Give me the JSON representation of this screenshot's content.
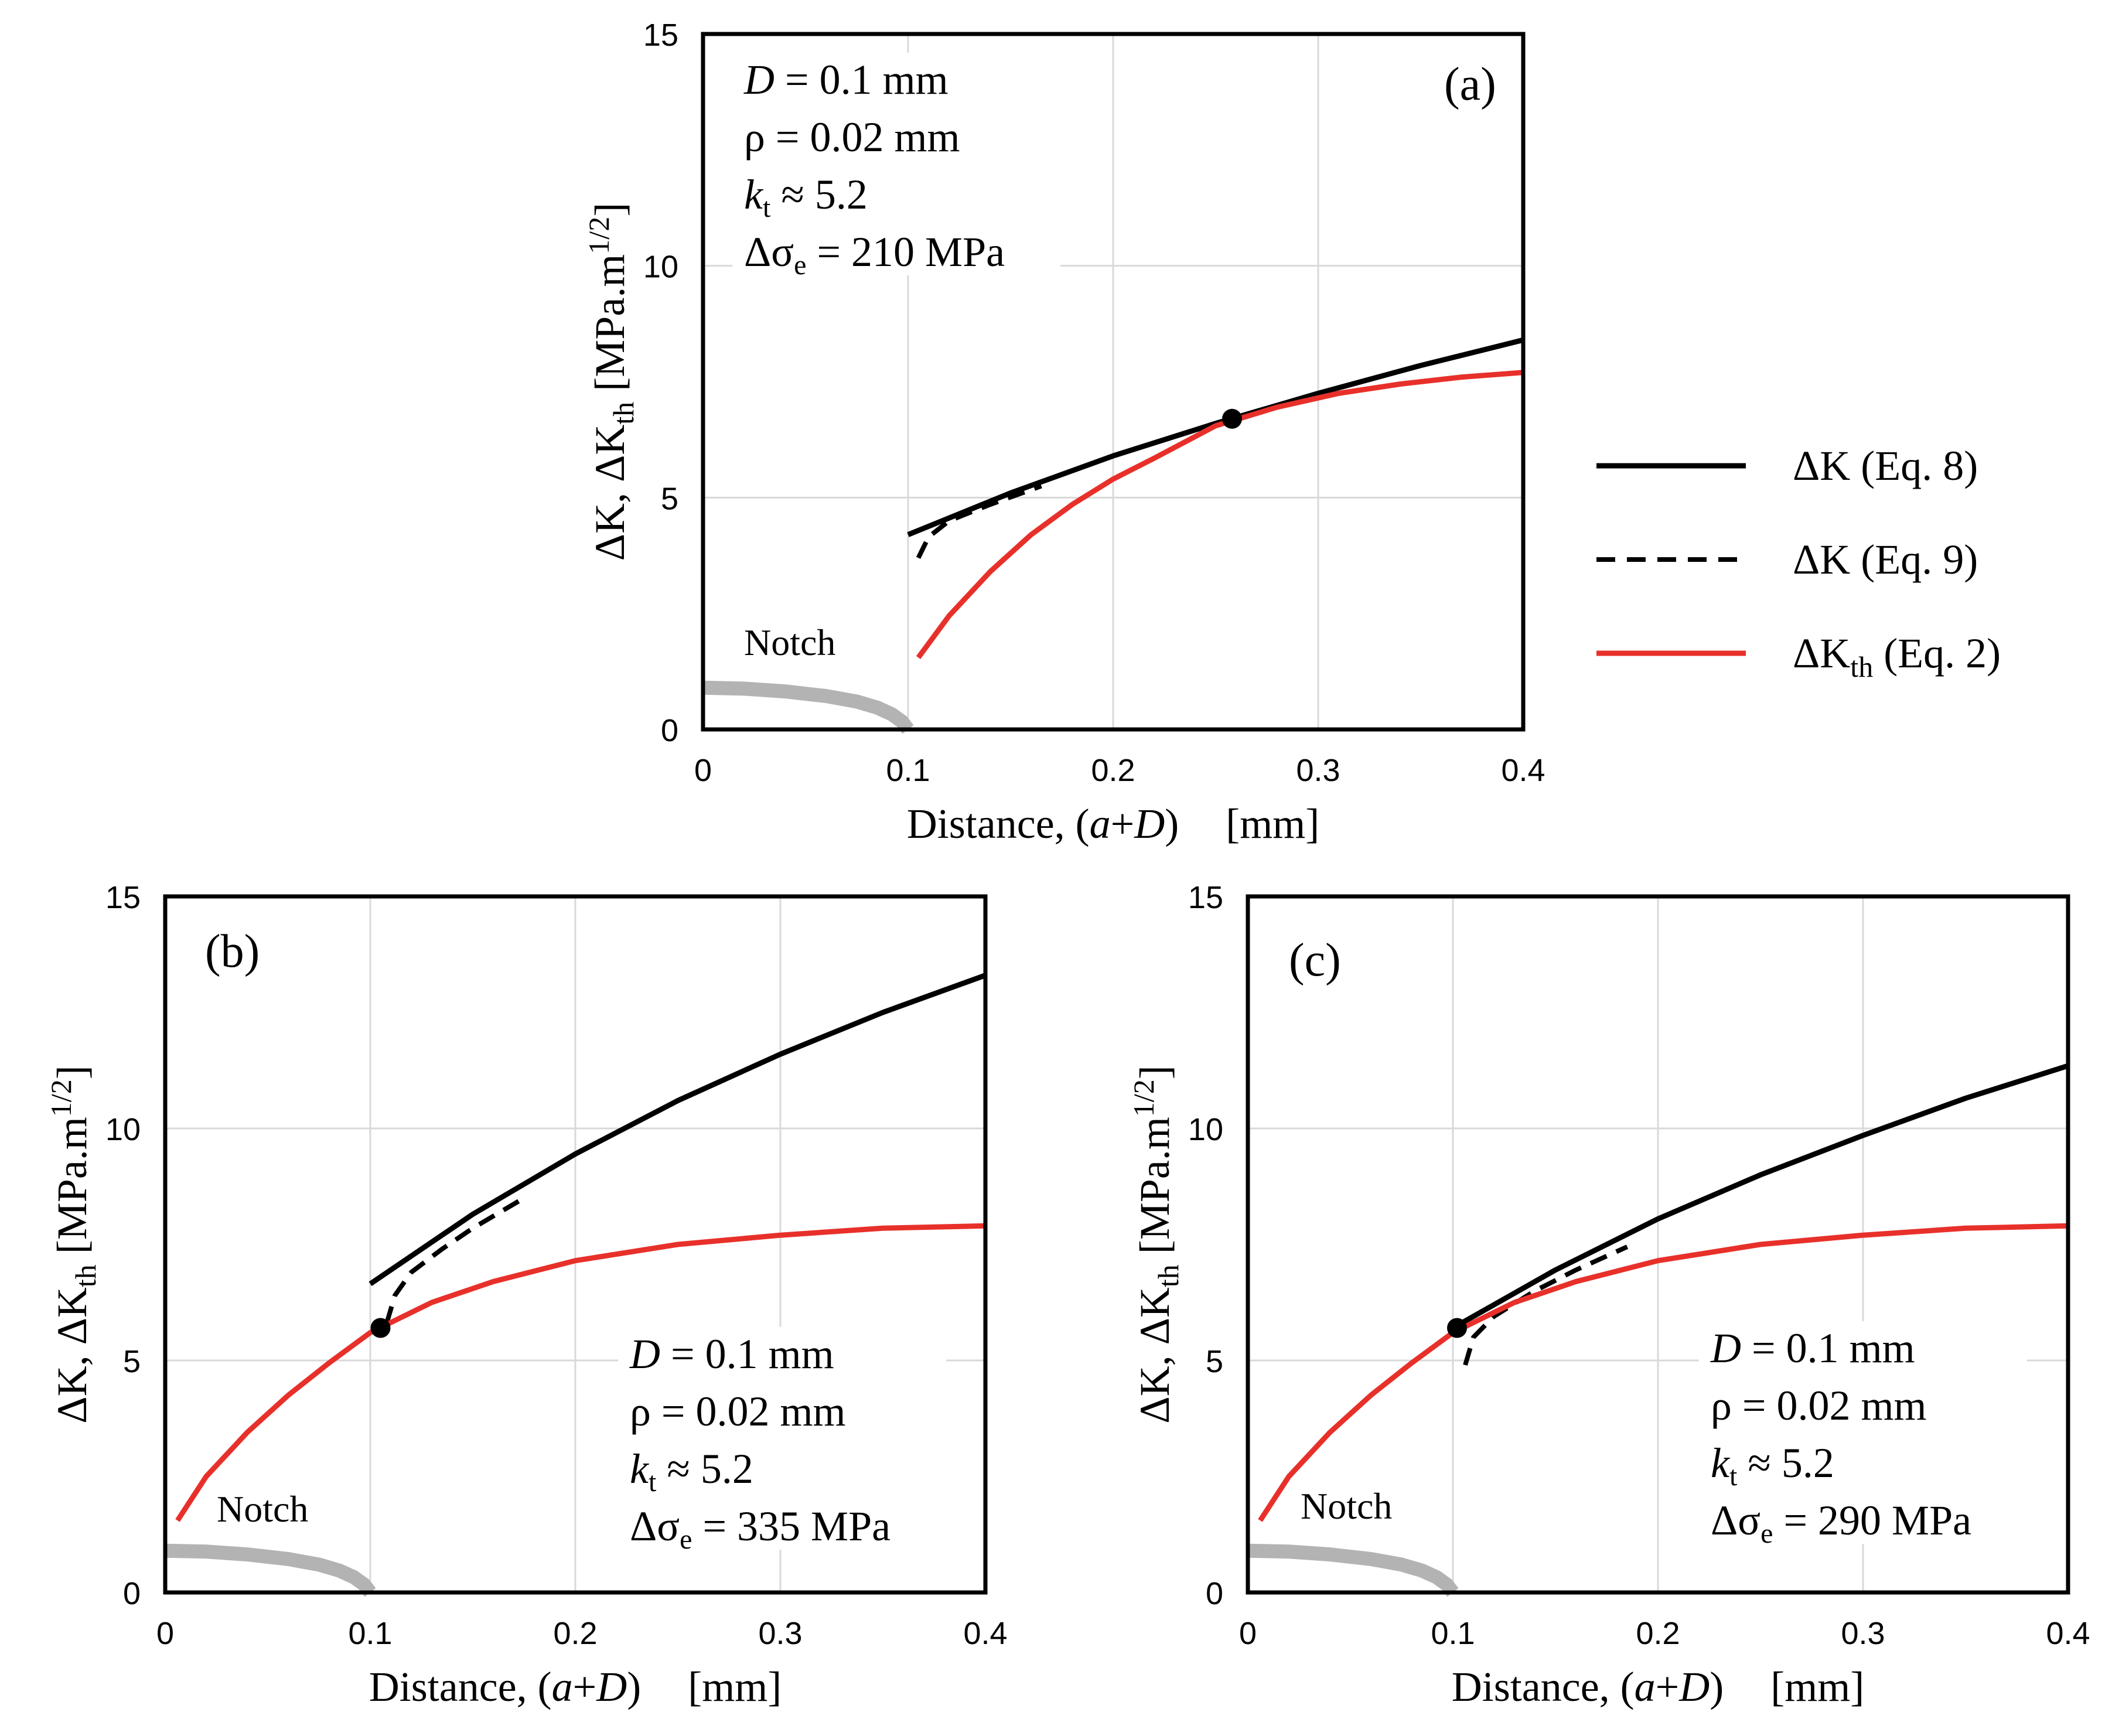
{
  "chart_data": [
    {
      "type": "line",
      "panel_label": "(a)",
      "xlabel": {
        "prefix": "Distance, (",
        "var1": "a",
        "plus": "+",
        "var2": "D",
        "suffix": ")",
        "unit": "[mm]"
      },
      "ylabel": {
        "main": "ΔK,  ΔK",
        "sub": "th",
        "unit": "  [MPa.m",
        "exp": "1/2",
        "close": "]"
      },
      "xlim": [
        0,
        0.4
      ],
      "ylim": [
        0,
        15
      ],
      "xticks": [
        "0",
        "0.1",
        "0.2",
        "0.3",
        "0.4"
      ],
      "yticks": [
        "0",
        "5",
        "10",
        "15"
      ],
      "grid": true,
      "annotation": {
        "D": {
          "var": "D",
          "text": " = 0.1 mm"
        },
        "rho": "ρ = 0.02 mm",
        "kt": {
          "var": "k",
          "sub": "t",
          "text": " ≈ 5.2"
        },
        "ds": {
          "prefix": "Δσ",
          "sub": "e",
          "text": " = 210 MPa"
        }
      },
      "notch_label": "Notch",
      "notch": {
        "x": [
          0,
          0.02,
          0.04,
          0.06,
          0.075,
          0.085,
          0.092,
          0.097,
          0.1
        ],
        "y": [
          0.9,
          0.88,
          0.82,
          0.72,
          0.6,
          0.47,
          0.33,
          0.17,
          0
        ]
      },
      "series": [
        {
          "name": "ΔK (Eq. 8)",
          "style": "solid",
          "color": "#000000",
          "x": [
            0.1,
            0.15,
            0.2,
            0.25,
            0.3,
            0.35,
            0.4
          ],
          "y": [
            4.2,
            5.1,
            5.9,
            6.6,
            7.25,
            7.85,
            8.4
          ]
        },
        {
          "name": "ΔK (Eq. 9)",
          "style": "dashed",
          "color": "#000000",
          "x": [
            0.105,
            0.11,
            0.12,
            0.14,
            0.165
          ],
          "y": [
            3.7,
            4.15,
            4.5,
            4.85,
            5.25
          ]
        },
        {
          "name": "ΔK_th (Eq. 2)",
          "style": "solid",
          "color": "#e8302a",
          "x": [
            0.105,
            0.12,
            0.14,
            0.16,
            0.18,
            0.2,
            0.22,
            0.25,
            0.28,
            0.31,
            0.34,
            0.37,
            0.4
          ],
          "y": [
            1.55,
            2.45,
            3.4,
            4.2,
            4.85,
            5.4,
            5.85,
            6.55,
            6.95,
            7.25,
            7.45,
            7.6,
            7.7
          ]
        }
      ],
      "marker": {
        "x": 0.258,
        "y": 6.7
      }
    },
    {
      "type": "line",
      "panel_label": "(b)",
      "xlabel": {
        "prefix": "Distance, (",
        "var1": "a",
        "plus": "+",
        "var2": "D",
        "suffix": ")",
        "unit": "[mm]"
      },
      "ylabel": {
        "main": "ΔK,  ΔK",
        "sub": "th",
        "unit": "  [MPa.m",
        "exp": "1/2",
        "close": "]"
      },
      "xlim": [
        0,
        0.4
      ],
      "ylim": [
        0,
        15
      ],
      "xticks": [
        "0",
        "0.1",
        "0.2",
        "0.3",
        "0.4"
      ],
      "yticks": [
        "0",
        "5",
        "10",
        "15"
      ],
      "grid": true,
      "annotation": {
        "D": {
          "var": "D",
          "text": " = 0.1 mm"
        },
        "rho": "ρ = 0.02 mm",
        "kt": {
          "var": "k",
          "sub": "t",
          "text": " ≈ 5.2"
        },
        "ds": {
          "prefix": "Δσ",
          "sub": "e",
          "text": " = 335 MPa"
        }
      },
      "notch_label": "Notch",
      "notch": {
        "x": [
          0,
          0.02,
          0.04,
          0.06,
          0.075,
          0.085,
          0.092,
          0.097,
          0.1
        ],
        "y": [
          0.9,
          0.88,
          0.82,
          0.72,
          0.6,
          0.47,
          0.33,
          0.17,
          0
        ]
      },
      "series": [
        {
          "name": "ΔK (Eq. 8)",
          "style": "solid",
          "color": "#000000",
          "x": [
            0.1,
            0.15,
            0.2,
            0.25,
            0.3,
            0.35,
            0.4
          ],
          "y": [
            6.65,
            8.15,
            9.45,
            10.6,
            11.6,
            12.5,
            13.3
          ]
        },
        {
          "name": "ΔK (Eq. 9)",
          "style": "dashed",
          "color": "#000000",
          "x": [
            0.108,
            0.112,
            0.12,
            0.135,
            0.15,
            0.175
          ],
          "y": [
            5.8,
            6.4,
            6.9,
            7.4,
            7.85,
            8.5
          ]
        },
        {
          "name": "ΔK_th (Eq. 2)",
          "style": "solid",
          "color": "#e8302a",
          "x": [
            0.006,
            0.02,
            0.04,
            0.06,
            0.08,
            0.1,
            0.13,
            0.16,
            0.2,
            0.25,
            0.3,
            0.35,
            0.4
          ],
          "y": [
            1.55,
            2.5,
            3.45,
            4.25,
            4.95,
            5.6,
            6.25,
            6.7,
            7.15,
            7.5,
            7.7,
            7.85,
            7.9
          ]
        }
      ],
      "marker": {
        "x": 0.105,
        "y": 5.7
      }
    },
    {
      "type": "line",
      "panel_label": "(c)",
      "xlabel": {
        "prefix": "Distance, (",
        "var1": "a",
        "plus": "+",
        "var2": "D",
        "suffix": ")",
        "unit": "[mm]"
      },
      "ylabel": {
        "main": "ΔK,  ΔK",
        "sub": "th",
        "unit": "  [MPa.m",
        "exp": "1/2",
        "close": "]"
      },
      "xlim": [
        0,
        0.4
      ],
      "ylim": [
        0,
        15
      ],
      "xticks": [
        "0",
        "0.1",
        "0.2",
        "0.3",
        "0.4"
      ],
      "yticks": [
        "0",
        "5",
        "10",
        "15"
      ],
      "grid": true,
      "annotation": {
        "D": {
          "var": "D",
          "text": " = 0.1 mm"
        },
        "rho": "ρ = 0.02 mm",
        "kt": {
          "var": "k",
          "sub": "t",
          "text": " ≈ 5.2"
        },
        "ds": {
          "prefix": "Δσ",
          "sub": "e",
          "text": " = 290 MPa"
        }
      },
      "notch_label": "Notch",
      "notch": {
        "x": [
          0,
          0.02,
          0.04,
          0.06,
          0.075,
          0.085,
          0.092,
          0.097,
          0.1
        ],
        "y": [
          0.9,
          0.88,
          0.82,
          0.72,
          0.6,
          0.47,
          0.33,
          0.17,
          0
        ]
      },
      "series": [
        {
          "name": "ΔK (Eq. 8)",
          "style": "solid",
          "color": "#000000",
          "x": [
            0.1,
            0.15,
            0.2,
            0.25,
            0.3,
            0.35,
            0.4
          ],
          "y": [
            5.7,
            6.95,
            8.05,
            9.0,
            9.85,
            10.65,
            11.35
          ]
        },
        {
          "name": "ΔK (Eq. 9)",
          "style": "dashed",
          "color": "#000000",
          "x": [
            0.106,
            0.11,
            0.12,
            0.14,
            0.16,
            0.185
          ],
          "y": [
            4.9,
            5.5,
            5.95,
            6.5,
            6.95,
            7.45
          ]
        },
        {
          "name": "ΔK_th (Eq. 2)",
          "style": "solid",
          "color": "#e8302a",
          "x": [
            0.006,
            0.02,
            0.04,
            0.06,
            0.08,
            0.1,
            0.13,
            0.16,
            0.2,
            0.25,
            0.3,
            0.35,
            0.4
          ],
          "y": [
            1.55,
            2.5,
            3.45,
            4.25,
            4.95,
            5.6,
            6.25,
            6.7,
            7.15,
            7.5,
            7.7,
            7.85,
            7.9
          ]
        }
      ],
      "marker": {
        "x": 0.102,
        "y": 5.7
      }
    }
  ],
  "legend": [
    {
      "main": "ΔK (Eq. 8)",
      "sub": "",
      "rest": "",
      "style": "solid",
      "color": "#000000"
    },
    {
      "main": "ΔK (Eq. 9)",
      "sub": "",
      "rest": "",
      "style": "dashed",
      "color": "#000000"
    },
    {
      "main": "ΔK",
      "sub": "th",
      "rest": " (Eq. 2)",
      "style": "solid",
      "color": "#e8302a"
    }
  ],
  "colors": {
    "notch": "#b3b3b3",
    "grid": "#d9d9d9",
    "axis": "#000000"
  }
}
